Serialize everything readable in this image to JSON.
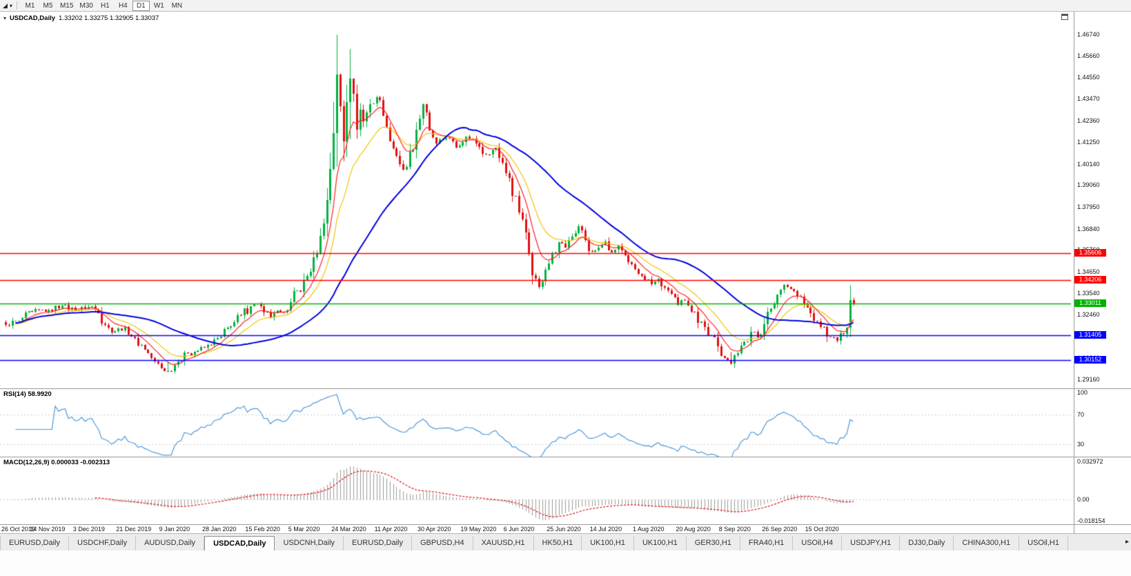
{
  "toolbar": {
    "timeframes": [
      "M1",
      "M5",
      "M15",
      "M30",
      "H1",
      "H4",
      "D1",
      "W1",
      "MN"
    ],
    "active_timeframe": "D1"
  },
  "icons": {
    "chart_mode_glyph": "◢",
    "dropdown_glyph": "▾",
    "chart_marker_glyph": "▾",
    "tab_scroll_right_glyph": "▸"
  },
  "window": {
    "title": "USDCAD,Daily",
    "ohlc": "1.33202 1.33275 1.32905 1.33037"
  },
  "price_axis": [
    "1.46740",
    "1.45660",
    "1.44550",
    "1.43470",
    "1.42360",
    "1.41250",
    "1.40140",
    "1.39060",
    "1.37950",
    "1.36840",
    "1.35760",
    "1.34650",
    "1.33540",
    "1.32460",
    "1.31350",
    "1.30240",
    "1.29160"
  ],
  "hlines": [
    {
      "price": 1.35606,
      "label": "1.35606",
      "color": "#FF0000"
    },
    {
      "price": 1.34206,
      "label": "1.34206",
      "color": "#FF0000"
    },
    {
      "price": 1.33011,
      "label": "1.33011",
      "color": "#00B300"
    },
    {
      "price": 1.31405,
      "label": "1.31405",
      "color": "#0000FF"
    },
    {
      "price": 1.30152,
      "label": "1.30152",
      "color": "#0000FF"
    }
  ],
  "rsi": {
    "label": "RSI(14) 58.9920",
    "levels": [
      "100",
      "70",
      "30"
    ],
    "level_values": [
      100,
      70,
      30
    ],
    "color": "#4E97D8"
  },
  "macd": {
    "label": "MACD(12,26,9) 0.000033 -0.002313",
    "axis": [
      "0.032972",
      "0.00",
      "-0.018154"
    ],
    "axis_values": [
      0.032972,
      0,
      -0.018154
    ],
    "histogram_color": "#9a9a9a",
    "signal_color": "#E01010"
  },
  "tabs": {
    "items": [
      "EURUSD,Daily",
      "USDCHF,Daily",
      "AUDUSD,Daily",
      "USDCAD,Daily",
      "USDCNH,Daily",
      "EURUSD,Daily",
      "GBPUSD,H4",
      "XAUUSD,H1",
      "HK50,H1",
      "UK100,H1",
      "UK100,H1",
      "GER30,H1",
      "FRA40,H1",
      "USOil,H4",
      "USDJPY,H1",
      "DJ30,Daily",
      "CHINA300,H1",
      "USOil,H1"
    ],
    "active_index": 3
  },
  "chart_data": {
    "type": "candlestick",
    "symbol": "USDCAD",
    "timeframe": "Daily",
    "price_range_visible": [
      1.2916,
      1.4674
    ],
    "last_bar": {
      "open": 1.33202,
      "high": 1.33275,
      "low": 1.32905,
      "close": 1.33037
    },
    "x_labels": [
      "26 Oct 2019",
      "14 Nov 2019",
      "3 Dec 2019",
      "21 Dec 2019",
      "9 Jan 2020",
      "28 Jan 2020",
      "15 Feb 2020",
      "5 Mar 2020",
      "24 Mar 2020",
      "11 Apr 2020",
      "30 Apr 2020",
      "19 May 2020",
      "6 Jun 2020",
      "25 Jun 2020",
      "14 Jul 2020",
      "1 Aug 2020",
      "20 Aug 2020",
      "8 Sep 2020",
      "26 Sep 2020",
      "15 Oct 2020"
    ],
    "bars_per_label": 13,
    "bar_count": 257,
    "up_color": "#00B140",
    "down_color": "#E01010",
    "anchors": [
      [
        0,
        1.3195
      ],
      [
        4,
        1.3215
      ],
      [
        8,
        1.326
      ],
      [
        13,
        1.327
      ],
      [
        17,
        1.3292
      ],
      [
        21,
        1.3268
      ],
      [
        26,
        1.329
      ],
      [
        28,
        1.3252
      ],
      [
        31,
        1.318
      ],
      [
        33,
        1.3162
      ],
      [
        36,
        1.3182
      ],
      [
        39,
        1.3128
      ],
      [
        42,
        1.3068
      ],
      [
        45,
        1.3008
      ],
      [
        47,
        1.2972
      ],
      [
        49,
        1.2958
      ],
      [
        52,
        1.3008
      ],
      [
        55,
        1.3048
      ],
      [
        58,
        1.3062
      ],
      [
        62,
        1.3092
      ],
      [
        65,
        1.3135
      ],
      [
        68,
        1.3188
      ],
      [
        71,
        1.3242
      ],
      [
        74,
        1.3288
      ],
      [
        76,
        1.3302
      ],
      [
        78,
        1.3258
      ],
      [
        80,
        1.3232
      ],
      [
        83,
        1.3262
      ],
      [
        86,
        1.331
      ],
      [
        88,
        1.3368
      ],
      [
        90,
        1.3422
      ],
      [
        92,
        1.3465
      ],
      [
        94,
        1.356
      ],
      [
        96,
        1.371
      ],
      [
        97,
        1.383
      ],
      [
        98,
        1.399
      ],
      [
        99,
        1.417
      ],
      [
        100,
        1.447
      ],
      [
        101,
        1.431
      ],
      [
        102,
        1.413
      ],
      [
        103,
        1.433
      ],
      [
        104,
        1.445
      ],
      [
        105,
        1.437
      ],
      [
        106,
        1.419
      ],
      [
        107,
        1.429
      ],
      [
        108,
        1.423
      ],
      [
        110,
        1.432
      ],
      [
        112,
        1.4355
      ],
      [
        114,
        1.426
      ],
      [
        116,
        1.413
      ],
      [
        118,
        1.4055
      ],
      [
        120,
        1.3985
      ],
      [
        122,
        1.4075
      ],
      [
        124,
        1.419
      ],
      [
        126,
        1.432
      ],
      [
        128,
        1.4185
      ],
      [
        130,
        1.412
      ],
      [
        133,
        1.4148
      ],
      [
        136,
        1.4098
      ],
      [
        139,
        1.4155
      ],
      [
        142,
        1.4118
      ],
      [
        145,
        1.4062
      ],
      [
        148,
        1.4098
      ],
      [
        150,
        1.402
      ],
      [
        152,
        1.3942
      ],
      [
        154,
        1.385
      ],
      [
        156,
        1.373
      ],
      [
        158,
        1.356
      ],
      [
        160,
        1.343
      ],
      [
        161,
        1.3388
      ],
      [
        163,
        1.3475
      ],
      [
        165,
        1.3558
      ],
      [
        167,
        1.3615
      ],
      [
        169,
        1.3588
      ],
      [
        171,
        1.3645
      ],
      [
        173,
        1.3698
      ],
      [
        175,
        1.3625
      ],
      [
        177,
        1.3565
      ],
      [
        179,
        1.3588
      ],
      [
        181,
        1.3618
      ],
      [
        183,
        1.3562
      ],
      [
        185,
        1.3598
      ],
      [
        187,
        1.3548
      ],
      [
        189,
        1.3502
      ],
      [
        191,
        1.3455
      ],
      [
        193,
        1.3422
      ],
      [
        195,
        1.3402
      ],
      [
        197,
        1.3428
      ],
      [
        199,
        1.3382
      ],
      [
        201,
        1.3352
      ],
      [
        203,
        1.3295
      ],
      [
        205,
        1.3318
      ],
      [
        207,
        1.3262
      ],
      [
        209,
        1.3205
      ],
      [
        211,
        1.3182
      ],
      [
        213,
        1.3142
      ],
      [
        215,
        1.3085
      ],
      [
        217,
        1.3025
      ],
      [
        219,
        1.2998
      ],
      [
        221,
        1.3048
      ],
      [
        223,
        1.3108
      ],
      [
        225,
        1.3158
      ],
      [
        227,
        1.3132
      ],
      [
        229,
        1.3198
      ],
      [
        231,
        1.3278
      ],
      [
        233,
        1.3348
      ],
      [
        235,
        1.3398
      ],
      [
        237,
        1.3378
      ],
      [
        239,
        1.3342
      ],
      [
        241,
        1.3302
      ],
      [
        243,
        1.3252
      ],
      [
        245,
        1.3212
      ],
      [
        247,
        1.3182
      ],
      [
        249,
        1.3132
      ],
      [
        251,
        1.3112
      ],
      [
        253,
        1.3148
      ],
      [
        254,
        1.3178
      ],
      [
        255,
        1.332
      ],
      [
        256,
        1.33037
      ]
    ],
    "wick_overrides": {
      "49": [
        1.2952,
        1.3005
      ],
      "99": [
        1.398,
        1.433
      ],
      "100": [
        1.4,
        1.4674
      ],
      "104": [
        1.414,
        1.46
      ],
      "219": [
        1.2992,
        1.3055
      ],
      "255": [
        1.317,
        1.3338
      ],
      "256": [
        1.32905,
        1.33275
      ]
    },
    "ma": [
      {
        "type": "ema",
        "period": 16,
        "color": "#F0C200",
        "width": 1.2
      },
      {
        "type": "ema",
        "period": 8,
        "color": "#FF2020",
        "width": 1.2
      },
      {
        "type": "sma",
        "period": 40,
        "color": "#0000E0",
        "width": 2
      }
    ]
  }
}
